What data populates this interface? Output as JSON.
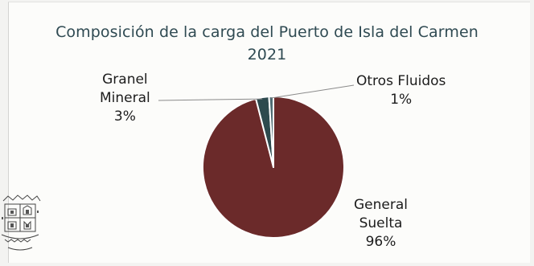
{
  "chart_data": {
    "type": "pie",
    "title": "Composición de la carga del Puerto de Isla del Carmen",
    "subtitle": "2021",
    "slices": [
      {
        "label_lines": [
          "General",
          "Suelta"
        ],
        "percent_label": "96%",
        "value": 96,
        "color": "#6b2a2a"
      },
      {
        "label_lines": [
          "Granel",
          "Mineral"
        ],
        "percent_label": "3%",
        "value": 3,
        "color": "#2d4a4e"
      },
      {
        "label_lines": [
          "Otros Fluidos"
        ],
        "percent_label": "1%",
        "value": 1,
        "color": "#4f6c73"
      }
    ]
  }
}
